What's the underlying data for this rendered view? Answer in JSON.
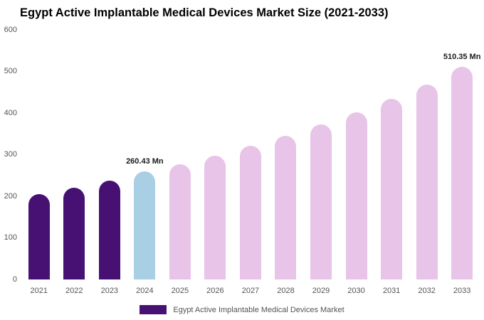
{
  "title": "Egypt Active Implantable Medical Devices Market Size (2021-2033)",
  "legend": {
    "label": "Egypt Active Implantable Medical Devices Market",
    "swatch_color": "#471173"
  },
  "colors": {
    "historical_bar": "#471173",
    "base_year_bar": "#a9cfe5",
    "forecast_bar": "#e8c4e8",
    "axis_text": "#555555",
    "title_text": "#000000",
    "background": "#ffffff"
  },
  "chart_data": {
    "type": "bar",
    "title": "Egypt Active Implantable Medical Devices Market Size (2021-2033)",
    "xlabel": "",
    "ylabel": "",
    "unit": "Mn",
    "ylim": [
      0,
      600
    ],
    "yticks": [
      0,
      100,
      200,
      300,
      400,
      500,
      600
    ],
    "grid": false,
    "legend_position": "bottom",
    "categories": [
      "2021",
      "2022",
      "2023",
      "2024",
      "2025",
      "2026",
      "2027",
      "2028",
      "2029",
      "2030",
      "2031",
      "2032",
      "2033"
    ],
    "values": [
      205,
      221,
      238,
      260.43,
      277,
      297,
      321,
      346,
      372,
      402,
      434,
      468,
      510.35
    ],
    "bar_colors": [
      "#471173",
      "#471173",
      "#471173",
      "#a9cfe5",
      "#e8c4e8",
      "#e8c4e8",
      "#e8c4e8",
      "#e8c4e8",
      "#e8c4e8",
      "#e8c4e8",
      "#e8c4e8",
      "#e8c4e8",
      "#e8c4e8"
    ],
    "data_labels": [
      "",
      "",
      "",
      "260.43 Mn",
      "",
      "",
      "",
      "",
      "",
      "",
      "",
      "",
      "510.35 Mn"
    ]
  }
}
